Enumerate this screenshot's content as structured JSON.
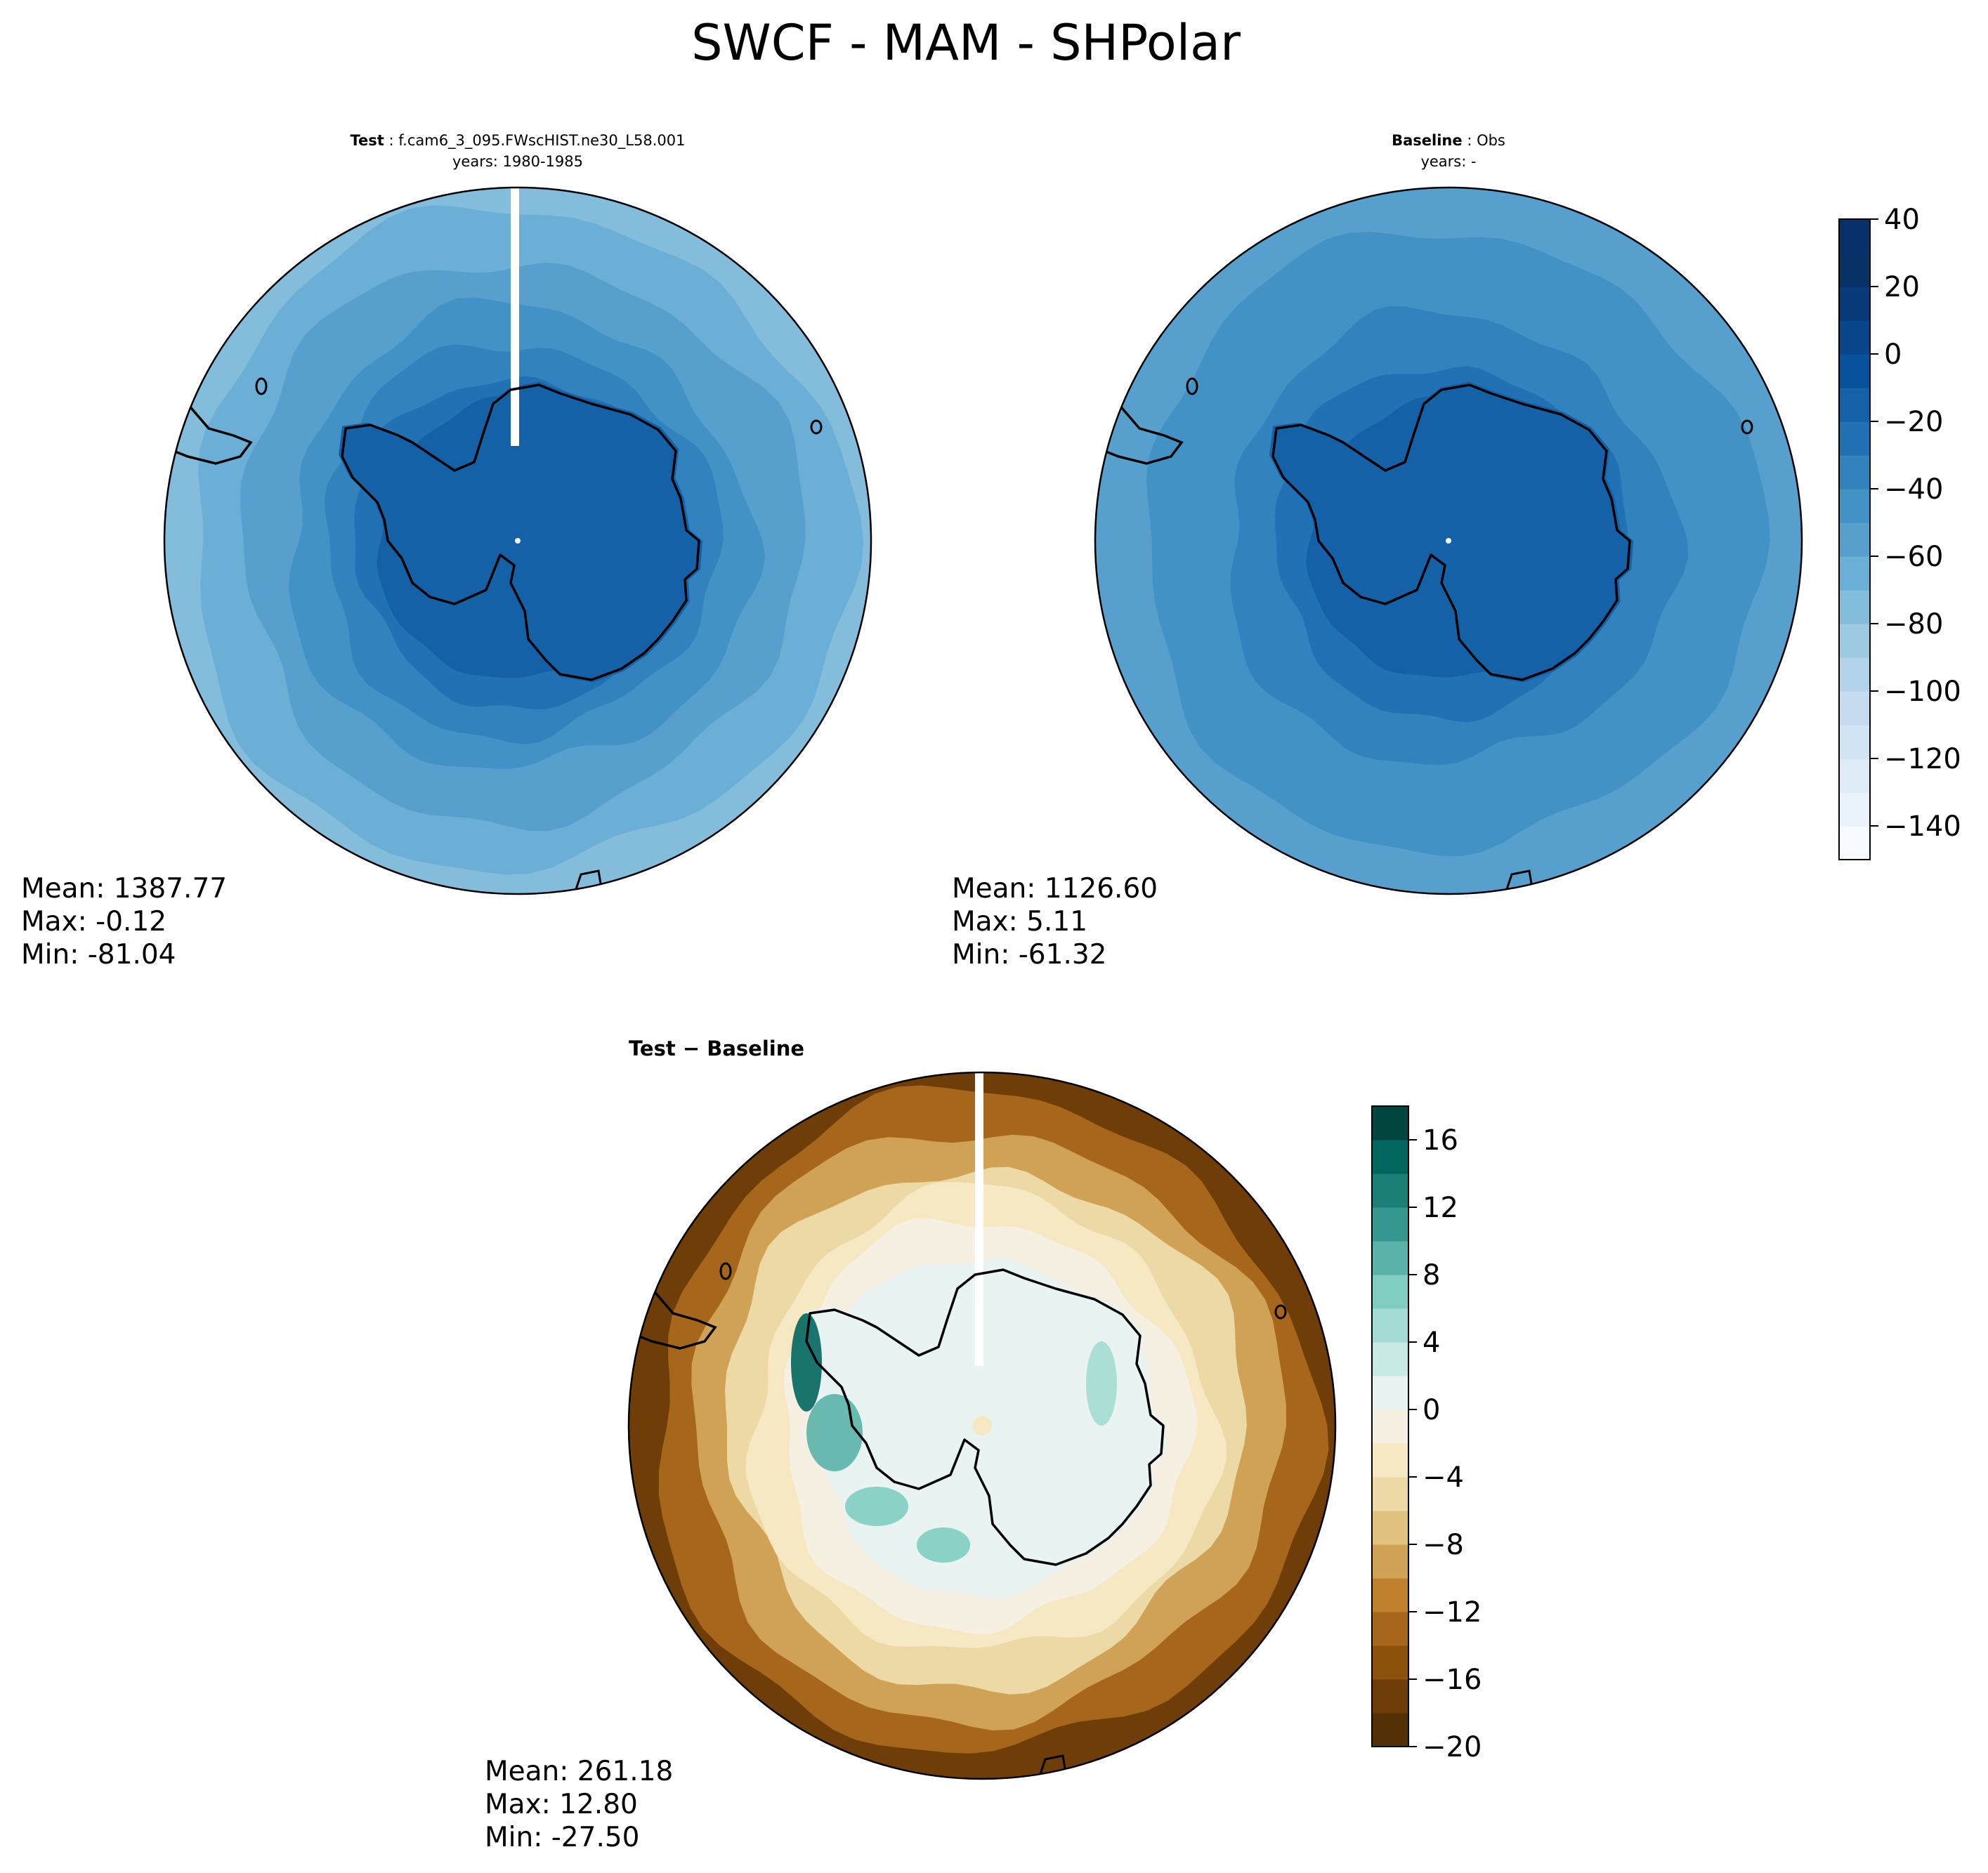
{
  "figure": {
    "title": "SWCF - MAM - SHPolar"
  },
  "panels": {
    "test": {
      "label": "Test",
      "case": "f.cam6_3_095.FWscHIST.ne30_L58.001",
      "years": "years: 1980-1985",
      "stats": {
        "mean": "Mean: 1387.77",
        "max": "Max: -0.12",
        "min": "Min: -81.04"
      }
    },
    "baseline": {
      "label": "Baseline",
      "case": "Obs",
      "years": "years: -",
      "stats": {
        "mean": "Mean: 1126.60",
        "max": "Max:  5.11",
        "min": "Min: -61.32"
      }
    },
    "diff": {
      "title": "Test − Baseline",
      "stats": {
        "mean": "Mean: 261.18",
        "max": "Max: 12.80",
        "min": "Min: -27.50"
      }
    }
  },
  "chart_data": [
    {
      "type": "heatmap",
      "name": "test",
      "projection": "south-polar-stereographic",
      "field": "SWCF",
      "season": "MAM",
      "colormap": "Blues",
      "levels": [
        -150,
        -140,
        -130,
        -120,
        -110,
        -100,
        -90,
        -80,
        -70,
        -60,
        -50,
        -40,
        -30,
        -20,
        -10,
        0,
        10,
        20,
        30,
        40
      ],
      "approx_field": [
        {
          "region": "antarctic interior",
          "value": -15
        },
        {
          "region": "coast ring",
          "value": -25
        },
        {
          "region": "southern ocean inner",
          "value": -45
        },
        {
          "region": "southern ocean outer",
          "value": -60
        },
        {
          "region": "domain edge",
          "value": -70
        }
      ],
      "mean": 1387.77,
      "max": -0.12,
      "min": -81.04
    },
    {
      "type": "heatmap",
      "name": "baseline",
      "projection": "south-polar-stereographic",
      "field": "SWCF",
      "season": "MAM",
      "colormap": "Blues",
      "levels": [
        -150,
        -140,
        -130,
        -120,
        -110,
        -100,
        -90,
        -80,
        -70,
        -60,
        -50,
        -40,
        -30,
        -20,
        -10,
        0,
        10,
        20,
        30,
        40
      ],
      "approx_field": [
        {
          "region": "antarctic interior",
          "value": -15
        },
        {
          "region": "coast ring",
          "value": -25
        },
        {
          "region": "southern ocean",
          "value": -40
        },
        {
          "region": "domain edge",
          "value": -50
        }
      ],
      "mean": 1126.6,
      "max": 5.11,
      "min": -61.32
    },
    {
      "type": "heatmap",
      "name": "test-baseline",
      "projection": "south-polar-stereographic",
      "colormap": "BrBG",
      "levels": [
        -20,
        -18,
        -16,
        -14,
        -12,
        -10,
        -8,
        -6,
        -4,
        -2,
        0,
        2,
        4,
        6,
        8,
        10,
        12,
        14,
        16,
        18
      ],
      "approx_field": [
        {
          "region": "antarctic interior",
          "value": 1
        },
        {
          "region": "coast ring",
          "value": 3
        },
        {
          "region": "inner ocean",
          "value": -1
        },
        {
          "region": "mid ocean",
          "value": -6
        },
        {
          "region": "outer ocean",
          "value": -12
        },
        {
          "region": "domain edge",
          "value": -16
        }
      ],
      "mean": 261.18,
      "max": 12.8,
      "min": -27.5
    }
  ],
  "colorbars": {
    "main": {
      "ticks": [
        "40",
        "20",
        "0",
        "−20",
        "−40",
        "−60",
        "−80",
        "−100",
        "−120",
        "−140"
      ]
    },
    "diff": {
      "ticks": [
        "16",
        "12",
        "8",
        "4",
        "0",
        "−4",
        "−8",
        "−12",
        "−16",
        "−20"
      ]
    }
  },
  "colors": {
    "blues": [
      "#f7fbff",
      "#eaf3fb",
      "#deebf7",
      "#d2e3f3",
      "#c6dbef",
      "#b2d2e8",
      "#9ecae1",
      "#84bcdb",
      "#6baed6",
      "#57a0ce",
      "#4292c6",
      "#3282be",
      "#2171b5",
      "#1461a8",
      "#08519c",
      "#08458a",
      "#083979",
      "#083266",
      "#08306b"
    ],
    "brbg": [
      "#543005",
      "#6f3d07",
      "#8c510a",
      "#a6661c",
      "#bf812d",
      "#d0a256",
      "#dfc27d",
      "#ecd9a6",
      "#f6e8c3",
      "#f5f0e2",
      "#e9f3f1",
      "#c7eae5",
      "#a4dbd2",
      "#80cdc1",
      "#5ab2a8",
      "#35978f",
      "#1c7f76",
      "#01665e",
      "#00463e"
    ],
    "coast": "#000000"
  }
}
